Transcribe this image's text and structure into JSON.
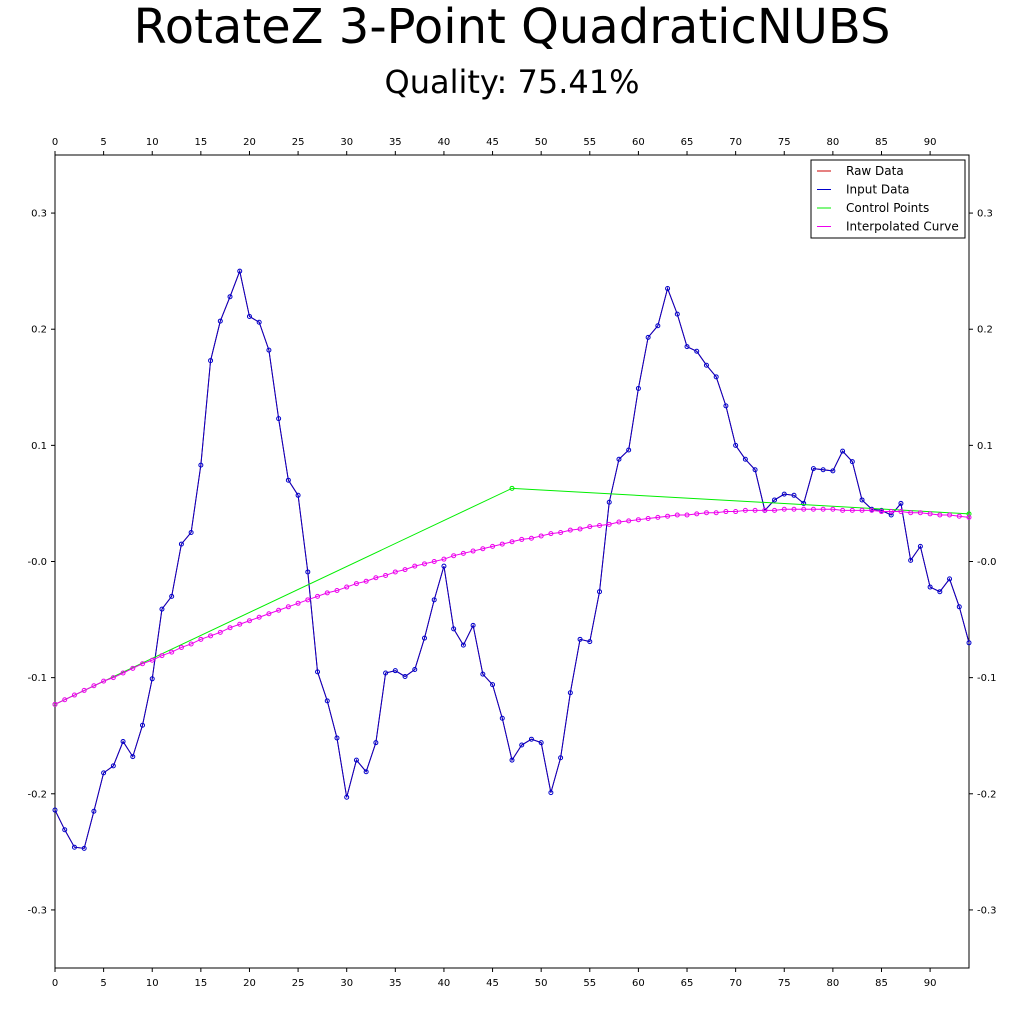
{
  "chart_data": {
    "type": "line",
    "title": "RotateZ 3-Point QuadraticNUBS",
    "subtitle": "Quality: 75.41%",
    "xlabel": "",
    "ylabel": "",
    "xlim": [
      0,
      94
    ],
    "ylim": [
      -0.35,
      0.35
    ],
    "x_ticks": [
      0,
      5,
      10,
      15,
      20,
      25,
      30,
      35,
      40,
      45,
      50,
      55,
      60,
      65,
      70,
      75,
      80,
      85,
      90
    ],
    "x_tick_labels": [
      "0",
      "5",
      "10",
      "15",
      "20",
      "25",
      "30",
      "35",
      "40",
      "45",
      "50",
      "55",
      "60",
      "65",
      "70",
      "75",
      "80",
      "85",
      "90"
    ],
    "y_ticks": [
      -0.3,
      -0.2,
      -0.1,
      0.0,
      0.1,
      0.2,
      0.3
    ],
    "y_tick_labels": [
      "-0.3",
      "-0.2",
      "-0.1",
      "-0.0",
      "0.1",
      "0.2",
      "0.3"
    ],
    "grid": false,
    "legend_position": "top-right",
    "series": [
      {
        "name": "Raw Data",
        "color": "#cc0000",
        "markers": false,
        "values": [
          -0.214,
          -0.231,
          -0.246,
          -0.247,
          -0.215,
          -0.182,
          -0.176,
          -0.155,
          -0.168,
          -0.141,
          -0.101,
          -0.041,
          -0.03,
          0.015,
          0.025,
          0.083,
          0.173,
          0.207,
          0.228,
          0.25,
          0.211,
          0.206,
          0.182,
          0.123,
          0.07,
          0.057,
          -0.009,
          -0.095,
          -0.12,
          -0.152,
          -0.203,
          -0.171,
          -0.181,
          -0.156,
          -0.096,
          -0.094,
          -0.099,
          -0.093,
          -0.066,
          -0.033,
          -0.004,
          -0.058,
          -0.072,
          -0.055,
          -0.097,
          -0.106,
          -0.135,
          -0.171,
          -0.158,
          -0.153,
          -0.156,
          -0.199,
          -0.169,
          -0.113,
          -0.067,
          -0.069,
          -0.026,
          0.051,
          0.088,
          0.096,
          0.149,
          0.193,
          0.203,
          0.235,
          0.213,
          0.185,
          0.181,
          0.169,
          0.159,
          0.134,
          0.1,
          0.088,
          0.079,
          0.044,
          0.053,
          0.058,
          0.057,
          0.05,
          0.08,
          0.079,
          0.078,
          0.095,
          0.086,
          0.053,
          0.045,
          0.044,
          0.04,
          0.05,
          0.001,
          0.013,
          -0.022,
          -0.026,
          -0.015,
          -0.039,
          -0.07
        ]
      },
      {
        "name": "Input Data",
        "color": "#0000cc",
        "markers": true,
        "values": [
          -0.214,
          -0.231,
          -0.246,
          -0.247,
          -0.215,
          -0.182,
          -0.176,
          -0.155,
          -0.168,
          -0.141,
          -0.101,
          -0.041,
          -0.03,
          0.015,
          0.025,
          0.083,
          0.173,
          0.207,
          0.228,
          0.25,
          0.211,
          0.206,
          0.182,
          0.123,
          0.07,
          0.057,
          -0.009,
          -0.095,
          -0.12,
          -0.152,
          -0.203,
          -0.171,
          -0.181,
          -0.156,
          -0.096,
          -0.094,
          -0.099,
          -0.093,
          -0.066,
          -0.033,
          -0.004,
          -0.058,
          -0.072,
          -0.055,
          -0.097,
          -0.106,
          -0.135,
          -0.171,
          -0.158,
          -0.153,
          -0.156,
          -0.199,
          -0.169,
          -0.113,
          -0.067,
          -0.069,
          -0.026,
          0.051,
          0.088,
          0.096,
          0.149,
          0.193,
          0.203,
          0.235,
          0.213,
          0.185,
          0.181,
          0.169,
          0.159,
          0.134,
          0.1,
          0.088,
          0.079,
          0.044,
          0.053,
          0.058,
          0.057,
          0.05,
          0.08,
          0.079,
          0.078,
          0.095,
          0.086,
          0.053,
          0.045,
          0.044,
          0.04,
          0.05,
          0.001,
          0.013,
          -0.022,
          -0.026,
          -0.015,
          -0.039,
          -0.07
        ]
      },
      {
        "name": "Control Points",
        "color": "#00ee00",
        "markers": true,
        "x": [
          0,
          47,
          94
        ],
        "values": [
          -0.123,
          0.063,
          0.041
        ]
      },
      {
        "name": "Interpolated Curve",
        "color": "#ee00ee",
        "markers": true,
        "values": [
          -0.123,
          -0.119,
          -0.115,
          -0.111,
          -0.107,
          -0.103,
          -0.1,
          -0.096,
          -0.092,
          -0.088,
          -0.085,
          -0.081,
          -0.078,
          -0.074,
          -0.071,
          -0.067,
          -0.064,
          -0.061,
          -0.057,
          -0.054,
          -0.051,
          -0.048,
          -0.045,
          -0.042,
          -0.039,
          -0.036,
          -0.033,
          -0.03,
          -0.027,
          -0.025,
          -0.022,
          -0.019,
          -0.017,
          -0.014,
          -0.012,
          -0.009,
          -0.007,
          -0.004,
          -0.002,
          0.0,
          0.002,
          0.005,
          0.007,
          0.009,
          0.011,
          0.013,
          0.015,
          0.017,
          0.019,
          0.02,
          0.022,
          0.024,
          0.025,
          0.027,
          0.028,
          0.03,
          0.031,
          0.032,
          0.034,
          0.035,
          0.036,
          0.037,
          0.038,
          0.039,
          0.04,
          0.04,
          0.041,
          0.042,
          0.042,
          0.043,
          0.043,
          0.044,
          0.044,
          0.044,
          0.044,
          0.045,
          0.045,
          0.045,
          0.045,
          0.045,
          0.045,
          0.044,
          0.044,
          0.044,
          0.044,
          0.043,
          0.043,
          0.043,
          0.042,
          0.042,
          0.041,
          0.04,
          0.04,
          0.039,
          0.038
        ]
      }
    ]
  }
}
